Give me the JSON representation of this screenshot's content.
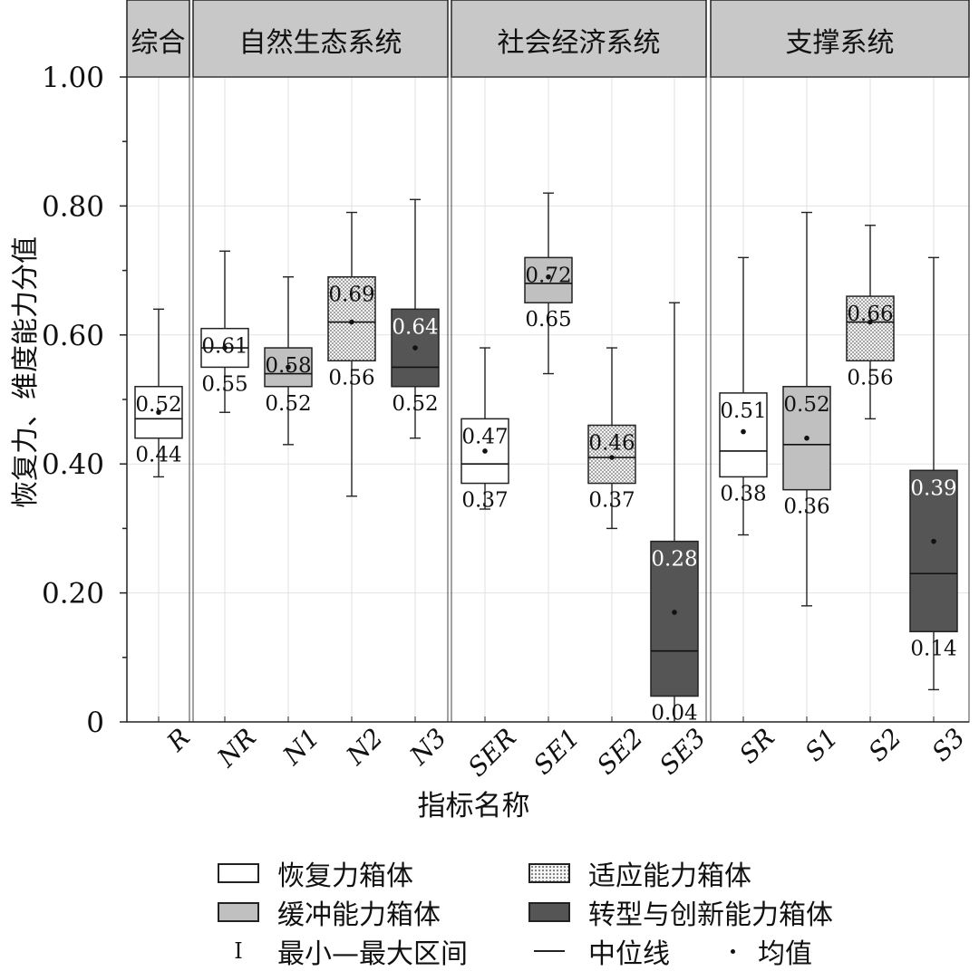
{
  "chart_data": {
    "type": "boxplot",
    "ylabel": "恢复力、维度能力分值",
    "xlabel": "指标名称",
    "ylim": [
      0,
      1
    ],
    "yticks": [
      "0",
      "0.20",
      "0.40",
      "0.60",
      "0.80",
      "1.00"
    ],
    "yticks_values": [
      0,
      0.2,
      0.4,
      0.6,
      0.8,
      1.0
    ],
    "grid": true,
    "panels": [
      {
        "title": "综合",
        "categories": [
          "R"
        ]
      },
      {
        "title": "自然生态系统",
        "categories": [
          "NR",
          "N1",
          "N2",
          "N3"
        ]
      },
      {
        "title": "社会经济系统",
        "categories": [
          "SER",
          "SE1",
          "SE2",
          "SE3"
        ]
      },
      {
        "title": "支撑系统",
        "categories": [
          "SR",
          "S1",
          "S2",
          "S3"
        ]
      }
    ],
    "boxes": [
      {
        "name": "R",
        "kind": "resilience",
        "min": 0.38,
        "q1": 0.44,
        "median": 0.47,
        "q3": 0.52,
        "max": 0.64,
        "mean": 0.48,
        "q3_label": "0.52",
        "q1_label": "0.44"
      },
      {
        "name": "NR",
        "kind": "resilience",
        "min": 0.48,
        "q1": 0.55,
        "median": 0.58,
        "q3": 0.61,
        "max": 0.73,
        "mean": 0.58,
        "q3_label": "0.61",
        "q1_label": "0.55"
      },
      {
        "name": "N1",
        "kind": "buffer",
        "min": 0.43,
        "q1": 0.52,
        "median": 0.54,
        "q3": 0.58,
        "max": 0.69,
        "mean": 0.55,
        "q3_label": "0.58",
        "q1_label": "0.52"
      },
      {
        "name": "N2",
        "kind": "adapt",
        "min": 0.35,
        "q1": 0.56,
        "median": 0.62,
        "q3": 0.69,
        "max": 0.79,
        "mean": 0.62,
        "q3_label": "0.69",
        "q1_label": "0.56"
      },
      {
        "name": "N3",
        "kind": "transform",
        "min": 0.44,
        "q1": 0.52,
        "median": 0.55,
        "q3": 0.64,
        "max": 0.81,
        "mean": 0.58,
        "q3_label": "0.64",
        "q1_label": "0.52"
      },
      {
        "name": "SER",
        "kind": "resilience",
        "min": 0.33,
        "q1": 0.37,
        "median": 0.4,
        "q3": 0.47,
        "max": 0.58,
        "mean": 0.42,
        "q3_label": "0.47",
        "q1_label": "0.37"
      },
      {
        "name": "SE1",
        "kind": "buffer",
        "min": 0.54,
        "q1": 0.65,
        "median": 0.68,
        "q3": 0.72,
        "max": 0.82,
        "mean": 0.69,
        "q3_label": "0.72",
        "q1_label": "0.65"
      },
      {
        "name": "SE2",
        "kind": "adapt",
        "min": 0.3,
        "q1": 0.37,
        "median": 0.41,
        "q3": 0.46,
        "max": 0.58,
        "mean": 0.41,
        "q3_label": "0.46",
        "q1_label": "0.37"
      },
      {
        "name": "SE3",
        "kind": "transform",
        "min": 0.0,
        "q1": 0.04,
        "median": 0.11,
        "q3": 0.28,
        "max": 0.65,
        "mean": 0.17,
        "q3_label": "0.28",
        "q1_label": "0.04"
      },
      {
        "name": "SR",
        "kind": "resilience",
        "min": 0.29,
        "q1": 0.38,
        "median": 0.42,
        "q3": 0.51,
        "max": 0.72,
        "mean": 0.45,
        "q3_label": "0.51",
        "q1_label": "0.38"
      },
      {
        "name": "S1",
        "kind": "buffer",
        "min": 0.18,
        "q1": 0.36,
        "median": 0.43,
        "q3": 0.52,
        "max": 0.79,
        "mean": 0.44,
        "q3_label": "0.52",
        "q1_label": "0.36"
      },
      {
        "name": "S2",
        "kind": "adapt",
        "min": 0.47,
        "q1": 0.56,
        "median": 0.62,
        "q3": 0.66,
        "max": 0.77,
        "mean": 0.62,
        "q3_label": "0.66",
        "q1_label": "0.56"
      },
      {
        "name": "S3",
        "kind": "transform",
        "min": 0.05,
        "q1": 0.14,
        "median": 0.23,
        "q3": 0.39,
        "max": 0.72,
        "mean": 0.28,
        "q3_label": "0.39",
        "q1_label": "0.14"
      }
    ],
    "colors": {
      "resilience": "#ffffff",
      "buffer": "#c0c0c0",
      "adapt": "#f4f4f4",
      "transform": "#555555",
      "strip": "#c8c8c8",
      "grid": "#e2e2e2",
      "stroke": "#222222"
    }
  },
  "legend": {
    "resilience_box": "恢复力箱体",
    "adapt_box": "适应能力箱体",
    "buffer_box": "缓冲能力箱体",
    "transform_box": "转型与创新能力箱体",
    "range": "最小—最大区间",
    "median": "中位线",
    "mean": "均值",
    "range_glyph": "I"
  }
}
